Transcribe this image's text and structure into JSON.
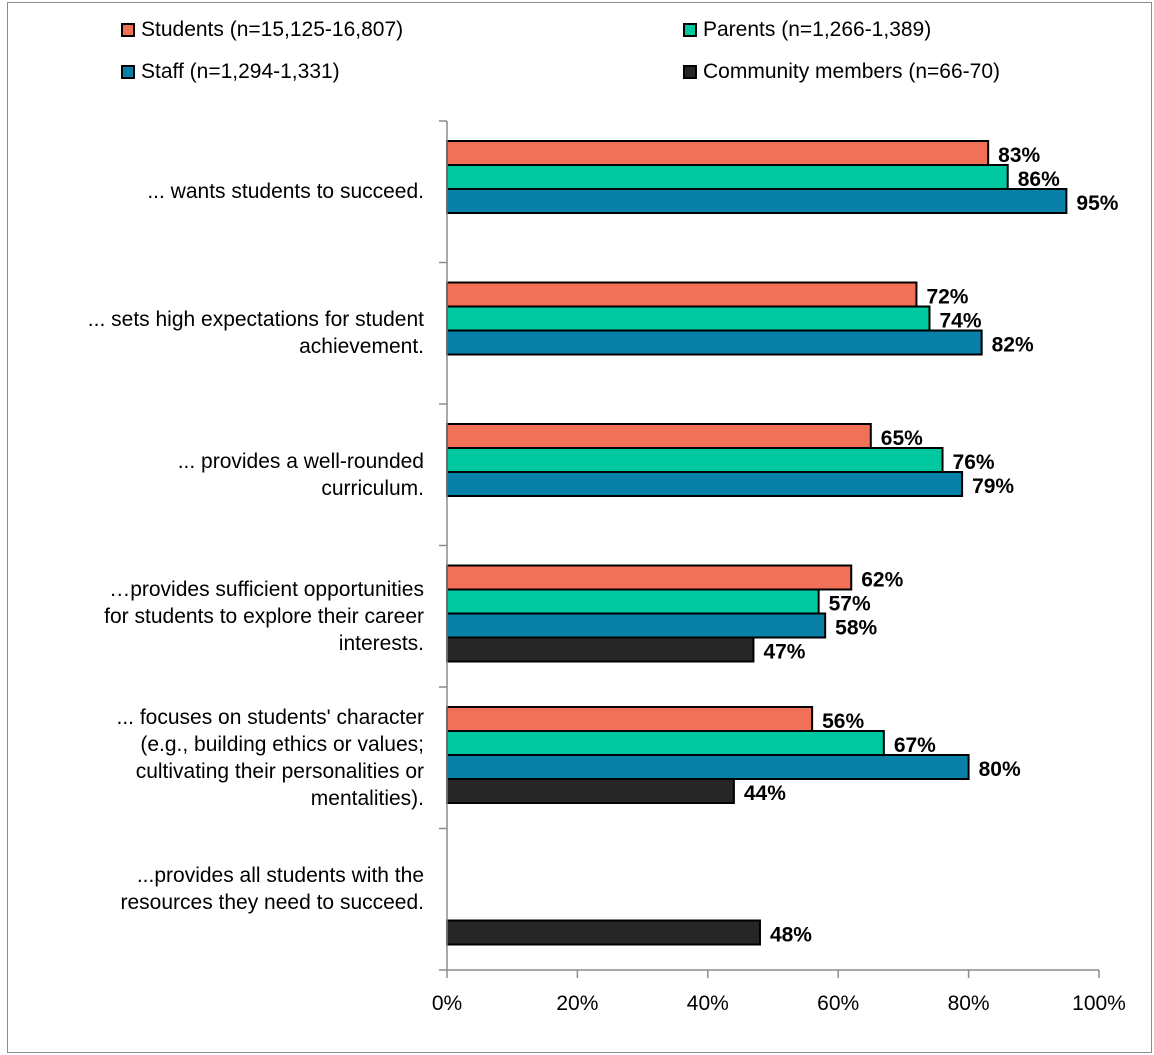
{
  "chart_data": {
    "type": "bar",
    "orientation": "horizontal",
    "categories": [
      "... wants students to succeed.",
      "... sets high expectations for student achievement.",
      "... provides a well-rounded curriculum.",
      "…provides sufficient opportunities for students to explore their career interests.",
      "... focuses on students' character (e.g., building ethics or values; cultivating their personalities or mentalities).",
      "...provides all students with the resources they need to succeed."
    ],
    "category_lines": [
      [
        "... wants students to succeed."
      ],
      [
        "... sets high expectations for student",
        "achievement."
      ],
      [
        "... provides a well-rounded",
        "curriculum."
      ],
      [
        "…provides sufficient opportunities",
        "for students to explore their career",
        "interests."
      ],
      [
        "... focuses on students' character",
        "(e.g., building ethics or values;",
        "cultivating their personalities or",
        "mentalities)."
      ],
      [
        "...provides all students with the",
        "resources they need to succeed."
      ]
    ],
    "series": [
      {
        "name": "Students (n=15,125-16,807)",
        "color": "#f07058",
        "values": [
          83,
          72,
          65,
          62,
          56,
          null
        ]
      },
      {
        "name": "Parents (n=1,266-1,389)",
        "color": "#00c8a0",
        "values": [
          86,
          74,
          76,
          57,
          67,
          null
        ]
      },
      {
        "name": "Staff (n=1,294-1,331)",
        "color": "#0880a8",
        "values": [
          95,
          82,
          79,
          58,
          80,
          null
        ]
      },
      {
        "name": "Community members (n=66-70)",
        "color": "#262626",
        "values": [
          null,
          null,
          null,
          47,
          44,
          48
        ]
      }
    ],
    "data_labels": [
      [
        "83%",
        "72%",
        "65%",
        "62%",
        "56%",
        null
      ],
      [
        "86%",
        "74%",
        "76%",
        "57%",
        "67%",
        null
      ],
      [
        "95%",
        "82%",
        "79%",
        "58%",
        "80%",
        null
      ],
      [
        null,
        null,
        null,
        "47%",
        "44%",
        "48%"
      ]
    ],
    "xlim": [
      0,
      100
    ],
    "xticks": [
      0,
      20,
      40,
      60,
      80,
      100
    ],
    "xtick_labels": [
      "0%",
      "20%",
      "40%",
      "60%",
      "80%",
      "100%"
    ],
    "grid": false,
    "legend_position": "top"
  }
}
